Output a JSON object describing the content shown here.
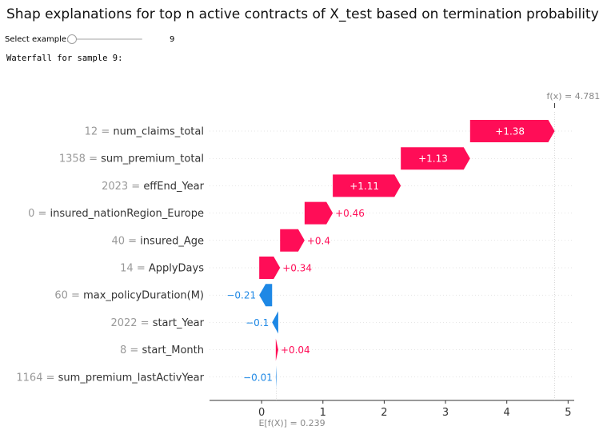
{
  "page": {
    "title": "Shap explanations for top n active contracts of X_test based on termination probability"
  },
  "controls": {
    "slider_label": "Select example:",
    "slider_value": "9",
    "slider_fraction": 0.0,
    "section_heading": "Waterfall for sample 9:"
  },
  "colors": {
    "positive": "#ff0d57",
    "negative": "#1e88e5",
    "feature_value": "#999999",
    "feature_name": "#333333"
  },
  "chart_data": {
    "type": "waterfall",
    "title": "",
    "xlabel": "",
    "ylabel": "",
    "xlim": [
      -0.85,
      5.1
    ],
    "xticks": [
      0,
      1,
      2,
      3,
      4,
      5
    ],
    "base_value_label": "E[f(X)] = 0.239",
    "output_value_label": "f(x) = 4.781",
    "base_value": 0.239,
    "output_value": 4.781,
    "features": [
      {
        "value": "12",
        "name": "num_claims_total",
        "contribution": 1.38,
        "label": "+1.38"
      },
      {
        "value": "1358",
        "name": "sum_premium_total",
        "contribution": 1.13,
        "label": "+1.13"
      },
      {
        "value": "2023",
        "name": "effEnd_Year",
        "contribution": 1.11,
        "label": "+1.11"
      },
      {
        "value": "0",
        "name": "insured_nationRegion_Europe",
        "contribution": 0.46,
        "label": "+0.46"
      },
      {
        "value": "40",
        "name": "insured_Age",
        "contribution": 0.4,
        "label": "+0.4"
      },
      {
        "value": "14",
        "name": "ApplyDays",
        "contribution": 0.34,
        "label": "+0.34"
      },
      {
        "value": "60",
        "name": "max_policyDuration(M)",
        "contribution": -0.21,
        "label": "−0.21"
      },
      {
        "value": "2022",
        "name": "start_Year",
        "contribution": -0.1,
        "label": "−0.1"
      },
      {
        "value": "8",
        "name": "start_Month",
        "contribution": 0.04,
        "label": "+0.04"
      },
      {
        "value": "1164",
        "name": "sum_premium_lastActivYear",
        "contribution": -0.01,
        "label": "−0.01"
      }
    ]
  }
}
